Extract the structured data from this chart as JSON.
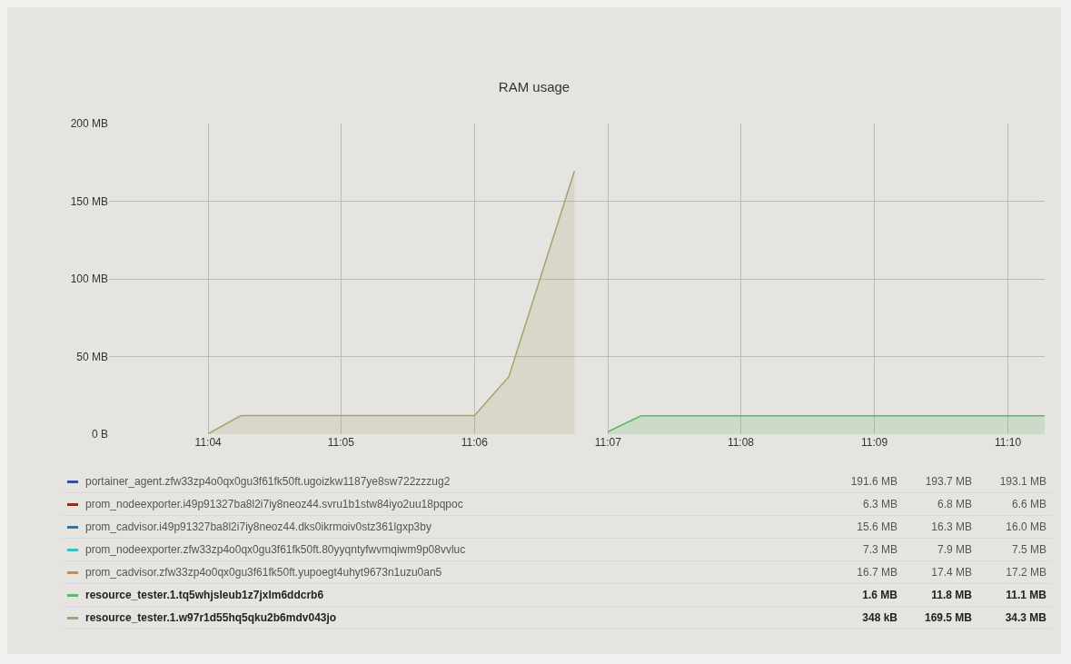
{
  "chart_data": {
    "type": "area",
    "title": "RAM usage",
    "xlim": [
      11.0543,
      11.1713
    ],
    "xticks": [
      {
        "value": 11.0667,
        "label": "11:04"
      },
      {
        "value": 11.0833,
        "label": "11:05"
      },
      {
        "value": 11.1,
        "label": "11:06"
      },
      {
        "value": 11.1167,
        "label": "11:07"
      },
      {
        "value": 11.1333,
        "label": "11:08"
      },
      {
        "value": 11.15,
        "label": "11:09"
      },
      {
        "value": 11.1667,
        "label": "11:10"
      }
    ],
    "ylim": [
      0,
      200
    ],
    "yticks": [
      {
        "value": 0,
        "label": "0 B"
      },
      {
        "value": 50,
        "label": "50 MB"
      },
      {
        "value": 100,
        "label": "100 MB"
      },
      {
        "value": 150,
        "label": "150 MB"
      },
      {
        "value": 200,
        "label": "200 MB"
      }
    ],
    "grid": true,
    "legend": "bottom",
    "marker": "none",
    "line_style": "solid",
    "series": [
      {
        "name": "portainer_agent.zfw33zp4o0qx0gu3f61fk50ft.ugoizkw1187ye8sw722zzzug2",
        "color": "#1f4fd6"
      },
      {
        "name": "prom_nodeexporter.i49p91327ba8l2i7iy8neoz44.svru1b1stw84iyo2uu18pqpoc",
        "color": "#8a2f1f"
      },
      {
        "name": "prom_cadvisor.i49p91327ba8l2i7iy8neoz44.dks0ikrmoiv0stz361lgxp3by",
        "color": "#1f78c1"
      },
      {
        "name": "prom_nodeexporter.zfw33zp4o0qx0gu3f61fk50ft.80yyqntyfwvmqiwm9p08vvluc",
        "color": "#3fbfbf"
      },
      {
        "name": "prom_cadvisor.zfw33zp4o0qx0gu3f61fk50ft.yupoegt4uhyt9673n1uzu0an5",
        "color": "#e5823a"
      },
      {
        "name": "resource_tester.1.tq5whjsleub1z7jxlm6ddcrb6",
        "color": "#5fb86a",
        "x": [
          11.1167,
          11.1208,
          11.1713
        ],
        "values": [
          1.6,
          11.8,
          11.8
        ]
      },
      {
        "name": "resource_tester.1.w97r1d55hq5qku2b6mdv043jo",
        "color": "#9ea66c",
        "x": [
          11.0667,
          11.0708,
          11.1,
          11.1043,
          11.1125
        ],
        "values": [
          0.3,
          12,
          12,
          37,
          169.5
        ]
      }
    ],
    "annotations": [
      "191.6 MB",
      "193.7 MB",
      "193.1 MB",
      "6.3 MB",
      "6.8 MB",
      "6.6 MB",
      "15.6 MB",
      "16.3 MB",
      "16.0 MB",
      "7.3 MB",
      "7.9 MB",
      "7.5 MB",
      "16.7 MB",
      "17.4 MB",
      "17.2 MB",
      "1.6 MB",
      "11.8 MB",
      "11.1 MB",
      "348 kB",
      "169.5 MB",
      "34.3 MB"
    ]
  }
}
